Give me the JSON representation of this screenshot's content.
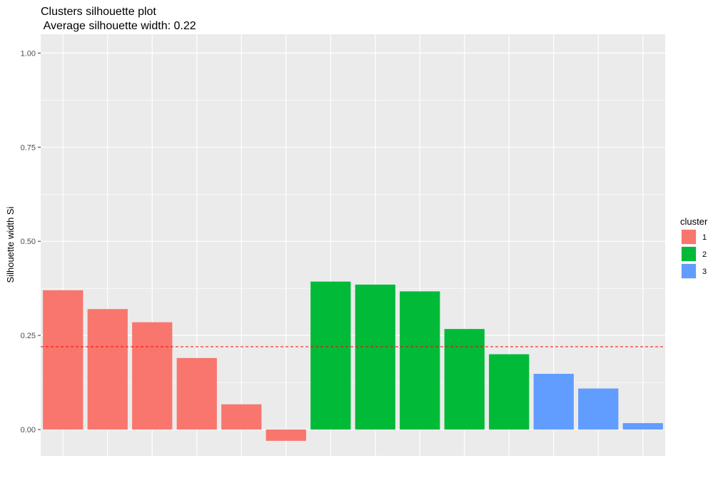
{
  "chart_data": {
    "type": "bar",
    "title": "Clusters silhouette plot",
    "subtitle": " Average silhouette width: 0.22",
    "xlabel": "",
    "ylabel": "Silhouette width Si",
    "ylim": [
      -0.07,
      1.05
    ],
    "yticks": [
      0.0,
      0.25,
      0.5,
      0.75,
      1.0
    ],
    "ytick_labels": [
      "0.00",
      "0.25",
      "0.50",
      "0.75",
      "1.00"
    ],
    "grid": true,
    "panel_background": "#ebebeb",
    "average_line": {
      "value": 0.22,
      "color": "#ff0000",
      "style": "dashed"
    },
    "legend": {
      "title": "cluster",
      "placement": "right",
      "entries": [
        {
          "label": "1",
          "color": "#F8766D"
        },
        {
          "label": "2",
          "color": "#00BA38"
        },
        {
          "label": "3",
          "color": "#619CFF"
        }
      ]
    },
    "bars": [
      {
        "cluster": "1",
        "value": 0.37
      },
      {
        "cluster": "1",
        "value": 0.32
      },
      {
        "cluster": "1",
        "value": 0.285
      },
      {
        "cluster": "1",
        "value": 0.19
      },
      {
        "cluster": "1",
        "value": 0.067
      },
      {
        "cluster": "1",
        "value": -0.03
      },
      {
        "cluster": "2",
        "value": 0.393
      },
      {
        "cluster": "2",
        "value": 0.385
      },
      {
        "cluster": "2",
        "value": 0.367
      },
      {
        "cluster": "2",
        "value": 0.267
      },
      {
        "cluster": "2",
        "value": 0.2
      },
      {
        "cluster": "3",
        "value": 0.148
      },
      {
        "cluster": "3",
        "value": 0.109
      },
      {
        "cluster": "3",
        "value": 0.017
      }
    ]
  }
}
